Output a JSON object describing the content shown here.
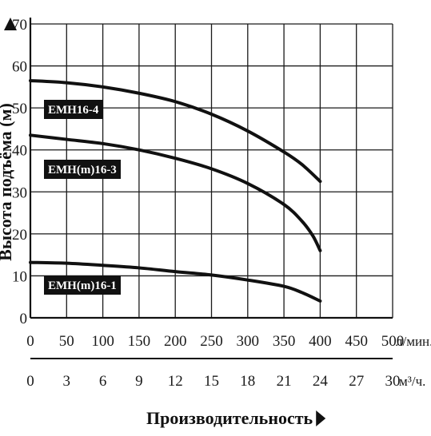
{
  "chart_data": {
    "type": "line",
    "ylabel": "Высота подъёма (м)",
    "xlabel": "Производительность",
    "ylim": [
      0,
      70
    ],
    "yticks": [
      "0",
      "10",
      "20",
      "30",
      "40",
      "50",
      "60",
      "70"
    ],
    "xlim": [
      0,
      500
    ],
    "xticks_lpm": [
      "0",
      "50",
      "100",
      "150",
      "200",
      "250",
      "300",
      "350",
      "400",
      "450",
      "500"
    ],
    "xunit_lpm": "л/мин.",
    "xticks_m3h": [
      "0",
      "3",
      "6",
      "9",
      "12",
      "15",
      "18",
      "21",
      "24",
      "27",
      "30"
    ],
    "xunit_m3h": "м³/ч.",
    "grid": true,
    "series": [
      {
        "name": "EMH16-4",
        "x": [
          0,
          50,
          100,
          150,
          200,
          250,
          300,
          350,
          375,
          400
        ],
        "y": [
          56.5,
          56,
          55,
          53.5,
          51.5,
          48.5,
          44.5,
          39.5,
          36.5,
          32.5
        ]
      },
      {
        "name": "EMH(m)16-3",
        "x": [
          0,
          50,
          100,
          150,
          200,
          250,
          300,
          350,
          375,
          390,
          400
        ],
        "y": [
          43.5,
          42.5,
          41.5,
          40,
          38,
          35.5,
          32,
          27,
          23,
          19.5,
          16
        ]
      },
      {
        "name": "EMH(m)16-1",
        "x": [
          0,
          50,
          100,
          150,
          200,
          250,
          300,
          350,
          375,
          400
        ],
        "y": [
          13.2,
          13,
          12.5,
          11.9,
          11,
          10.2,
          9,
          7.5,
          6,
          4
        ]
      }
    ]
  }
}
